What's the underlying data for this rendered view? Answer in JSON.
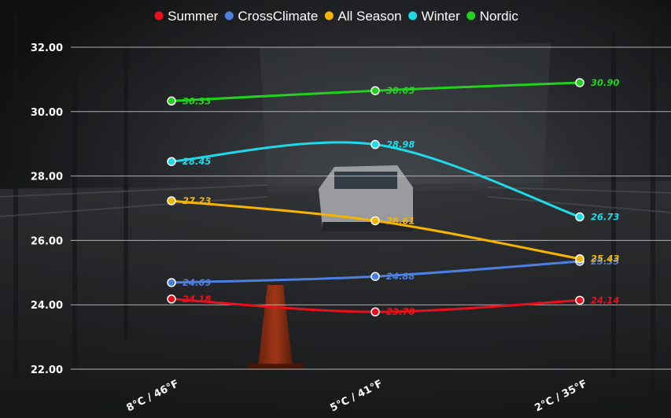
{
  "chart_data": {
    "type": "line",
    "title": "",
    "xlabel": "",
    "ylabel": "",
    "categories": [
      "8°C / 46°F",
      "5°C / 41°F",
      "2°C / 35°F"
    ],
    "ylim": [
      22,
      32
    ],
    "yticks": [
      "22.00",
      "24.00",
      "26.00",
      "28.00",
      "30.00",
      "32.00"
    ],
    "grid": true,
    "legend_position": "top",
    "series": [
      {
        "name": "Summer",
        "color": "#e8101a",
        "values": [
          24.18,
          23.78,
          24.14
        ],
        "labels": [
          "24.18",
          "23.78",
          "24.14"
        ]
      },
      {
        "name": "CrossClimate",
        "color": "#4d7fe0",
        "values": [
          24.69,
          24.88,
          25.35
        ],
        "labels": [
          "24.69",
          "24.88",
          "25.35"
        ]
      },
      {
        "name": "All Season",
        "color": "#f4b400",
        "values": [
          27.23,
          26.61,
          25.43
        ],
        "labels": [
          "27.23",
          "26.61",
          "25.43"
        ]
      },
      {
        "name": "Winter",
        "color": "#1fd8e8",
        "values": [
          28.45,
          28.98,
          26.73
        ],
        "labels": [
          "28.45",
          "28.98",
          "26.73"
        ]
      },
      {
        "name": "Nordic",
        "color": "#22d01e",
        "values": [
          30.33,
          30.65,
          30.9
        ],
        "labels": [
          "30.33",
          "30.65",
          "30.90"
        ]
      }
    ]
  }
}
